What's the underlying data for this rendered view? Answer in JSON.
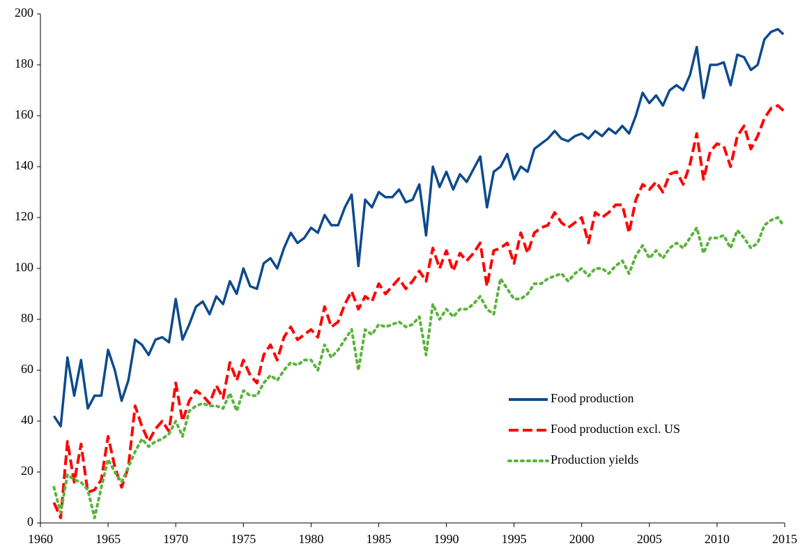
{
  "chart_data": {
    "type": "line",
    "x": [
      1961,
      1961.5,
      1962,
      1962.5,
      1963,
      1963.5,
      1964,
      1964.5,
      1965,
      1965.5,
      1966,
      1966.5,
      1967,
      1967.5,
      1968,
      1968.5,
      1969,
      1969.5,
      1970,
      1970.5,
      1971,
      1971.5,
      1972,
      1972.5,
      1973,
      1973.5,
      1974,
      1974.5,
      1975,
      1975.5,
      1976,
      1976.5,
      1977,
      1977.5,
      1978,
      1978.5,
      1979,
      1979.5,
      1980,
      1980.5,
      1981,
      1981.5,
      1982,
      1982.5,
      1983,
      1983.5,
      1984,
      1984.5,
      1985,
      1985.5,
      1986,
      1986.5,
      1987,
      1987.5,
      1988,
      1988.5,
      1989,
      1989.5,
      1990,
      1990.5,
      1991,
      1991.5,
      1992,
      1992.5,
      1993,
      1993.5,
      1994,
      1994.5,
      1995,
      1995.5,
      1996,
      1996.5,
      1997,
      1997.5,
      1998,
      1998.5,
      1999,
      1999.5,
      2000,
      2000.5,
      2001,
      2001.5,
      2002,
      2002.5,
      2003,
      2003.5,
      2004,
      2004.5,
      2005,
      2005.5,
      2006,
      2006.5,
      2007,
      2007.5,
      2008,
      2008.5,
      2009,
      2009.5,
      2010,
      2010.5,
      2011,
      2011.5,
      2012,
      2012.5,
      2013,
      2013.5,
      2014,
      2014.5,
      2014.9
    ],
    "series": [
      {
        "name": "Food production",
        "color": "#0d4a8c",
        "style": "solid",
        "values": [
          42,
          38,
          65,
          50,
          64,
          45,
          50,
          50,
          68,
          60,
          48,
          56,
          72,
          70,
          66,
          72,
          73,
          71,
          88,
          72,
          78,
          85,
          87,
          82,
          89,
          86,
          95,
          90,
          100,
          93,
          92,
          102,
          104,
          100,
          108,
          114,
          110,
          112,
          116,
          114,
          121,
          117,
          117,
          124,
          129,
          101,
          127,
          124,
          130,
          128,
          128,
          131,
          126,
          127,
          133,
          113,
          140,
          132,
          138,
          131,
          137,
          134,
          139,
          144,
          124,
          138,
          140,
          145,
          135,
          140,
          138,
          147,
          149,
          151,
          154,
          151,
          150,
          152,
          153,
          151,
          154,
          152,
          155,
          153,
          156,
          153,
          160,
          169,
          165,
          168,
          164,
          170,
          172,
          170,
          176,
          187,
          167,
          180,
          180,
          181,
          172,
          184,
          183,
          178,
          180,
          190,
          193,
          194,
          192
        ]
      },
      {
        "name": "Food production excl. US",
        "color": "#ff0000",
        "style": "dashed",
        "values": [
          8,
          2,
          32,
          16,
          31,
          12,
          13,
          17,
          34,
          22,
          14,
          22,
          46,
          38,
          32,
          37,
          40,
          36,
          55,
          40,
          48,
          52,
          50,
          47,
          54,
          49,
          63,
          56,
          64,
          58,
          55,
          66,
          70,
          64,
          73,
          77,
          72,
          74,
          76,
          73,
          85,
          77,
          79,
          86,
          91,
          84,
          89,
          87,
          94,
          90,
          93,
          96,
          92,
          95,
          99,
          95,
          108,
          100,
          107,
          99,
          106,
          103,
          106,
          110,
          93,
          107,
          108,
          110,
          102,
          114,
          106,
          114,
          116,
          117,
          122,
          118,
          116,
          118,
          120,
          110,
          122,
          120,
          122,
          125,
          125,
          114,
          127,
          133,
          131,
          134,
          130,
          137,
          138,
          133,
          141,
          153,
          135,
          146,
          149,
          148,
          140,
          152,
          156,
          147,
          152,
          159,
          163,
          164,
          162
        ]
      },
      {
        "name": "Production yields",
        "color": "#5ab43c",
        "style": "dotted",
        "values": [
          14,
          4,
          19,
          17,
          16,
          13,
          2,
          14,
          25,
          20,
          16,
          22,
          28,
          33,
          30,
          32,
          33,
          35,
          40,
          34,
          44,
          46,
          47,
          46,
          46,
          45,
          51,
          44,
          52,
          50,
          50,
          55,
          58,
          56,
          60,
          63,
          62,
          64,
          64,
          60,
          70,
          65,
          68,
          72,
          76,
          60,
          76,
          74,
          78,
          77,
          78,
          79,
          77,
          78,
          81,
          66,
          86,
          80,
          84,
          81,
          84,
          84,
          86,
          89,
          84,
          82,
          96,
          92,
          88,
          88,
          90,
          94,
          94,
          96,
          97,
          98,
          95,
          98,
          100,
          97,
          100,
          100,
          98,
          101,
          103,
          98,
          105,
          109,
          104,
          107,
          104,
          108,
          110,
          108,
          112,
          116,
          106,
          112,
          112,
          113,
          108,
          115,
          112,
          108,
          110,
          117,
          119,
          120,
          117
        ]
      }
    ],
    "xlim": [
      1960,
      2015
    ],
    "xticks": [
      1960,
      1965,
      1970,
      1975,
      1980,
      1985,
      1990,
      1995,
      2000,
      2005,
      2010,
      2015
    ],
    "ylim": [
      0,
      200
    ],
    "yticks": [
      0,
      20,
      40,
      60,
      80,
      100,
      120,
      140,
      160,
      180,
      200
    ],
    "grid": false,
    "legend": "lower right"
  }
}
